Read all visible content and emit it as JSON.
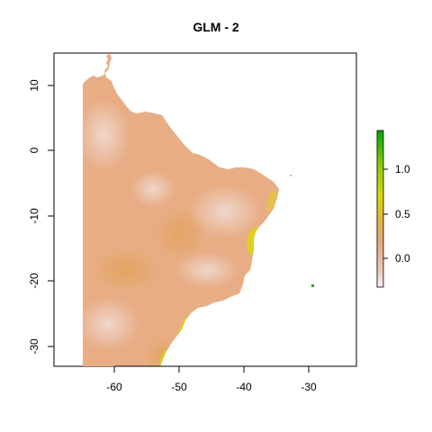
{
  "title": "GLM -  2",
  "map": {
    "x_axis": {
      "range": [
        -70,
        -24
      ],
      "ticks": [
        -60,
        -50,
        -40,
        -30
      ],
      "tick_labels": [
        "-60",
        "-50",
        "-40",
        "-30"
      ]
    },
    "y_axis": {
      "range": [
        -33,
        15
      ],
      "ticks": [
        10,
        0,
        -10,
        -20,
        -30
      ],
      "tick_labels": [
        "10",
        "0",
        "-10",
        "-20",
        "-30"
      ]
    },
    "raster_colors": {
      "low": "#ebc9bd",
      "mid": "#e8a878",
      "high_coast": "#e6d41a",
      "island_point": "#3a9a1a"
    }
  },
  "legend": {
    "scale_min": -0.35,
    "scale_max": 1.45,
    "ticks": [
      0.0,
      0.5,
      1.0
    ],
    "tick_labels": [
      "0.0",
      "0.5",
      "1.0"
    ],
    "gradient_colors": [
      "#f2f2f2",
      "#ebc4b0",
      "#e8a878",
      "#e2b83a",
      "#d8d800",
      "#8ccc00",
      "#00a600"
    ]
  }
}
